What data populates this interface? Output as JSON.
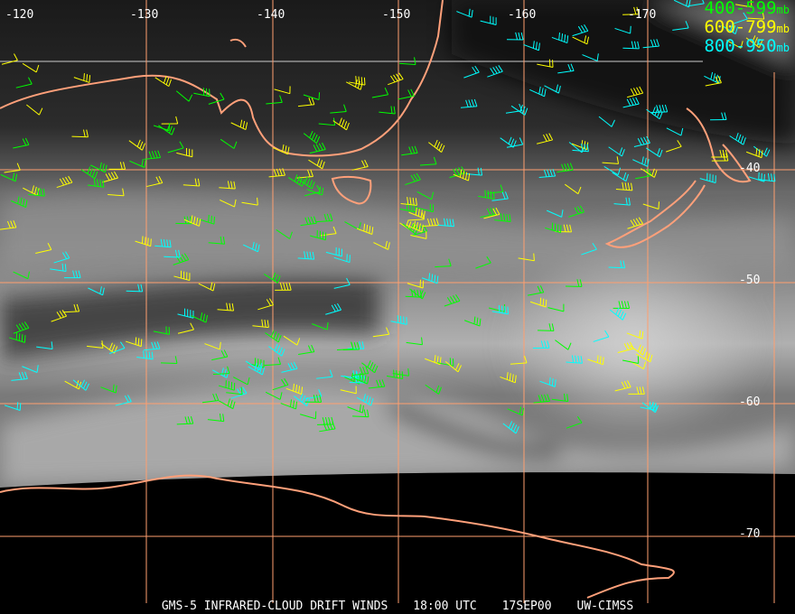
{
  "legend": [
    {
      "range": "400-599",
      "unit": "mb",
      "color": "#00ff00"
    },
    {
      "range": "600-799",
      "unit": "mb",
      "color": "#ffff00"
    },
    {
      "range": "800-950",
      "unit": "mb",
      "color": "#00ffff"
    }
  ],
  "longitude_labels": [
    "-120",
    "-130",
    "-140",
    "-150",
    "-160",
    "-170"
  ],
  "latitude_labels": [
    "-40",
    "-50",
    "-60",
    "-70"
  ],
  "caption": {
    "product": "GMS-5 INFRARED-CLOUD DRIFT WINDS",
    "time": "18:00 UTC",
    "date": "17SEP00",
    "source": "UW-CIMSS"
  },
  "colors": {
    "grid": "#ff9f6f",
    "coastline": "#ffa07a"
  }
}
